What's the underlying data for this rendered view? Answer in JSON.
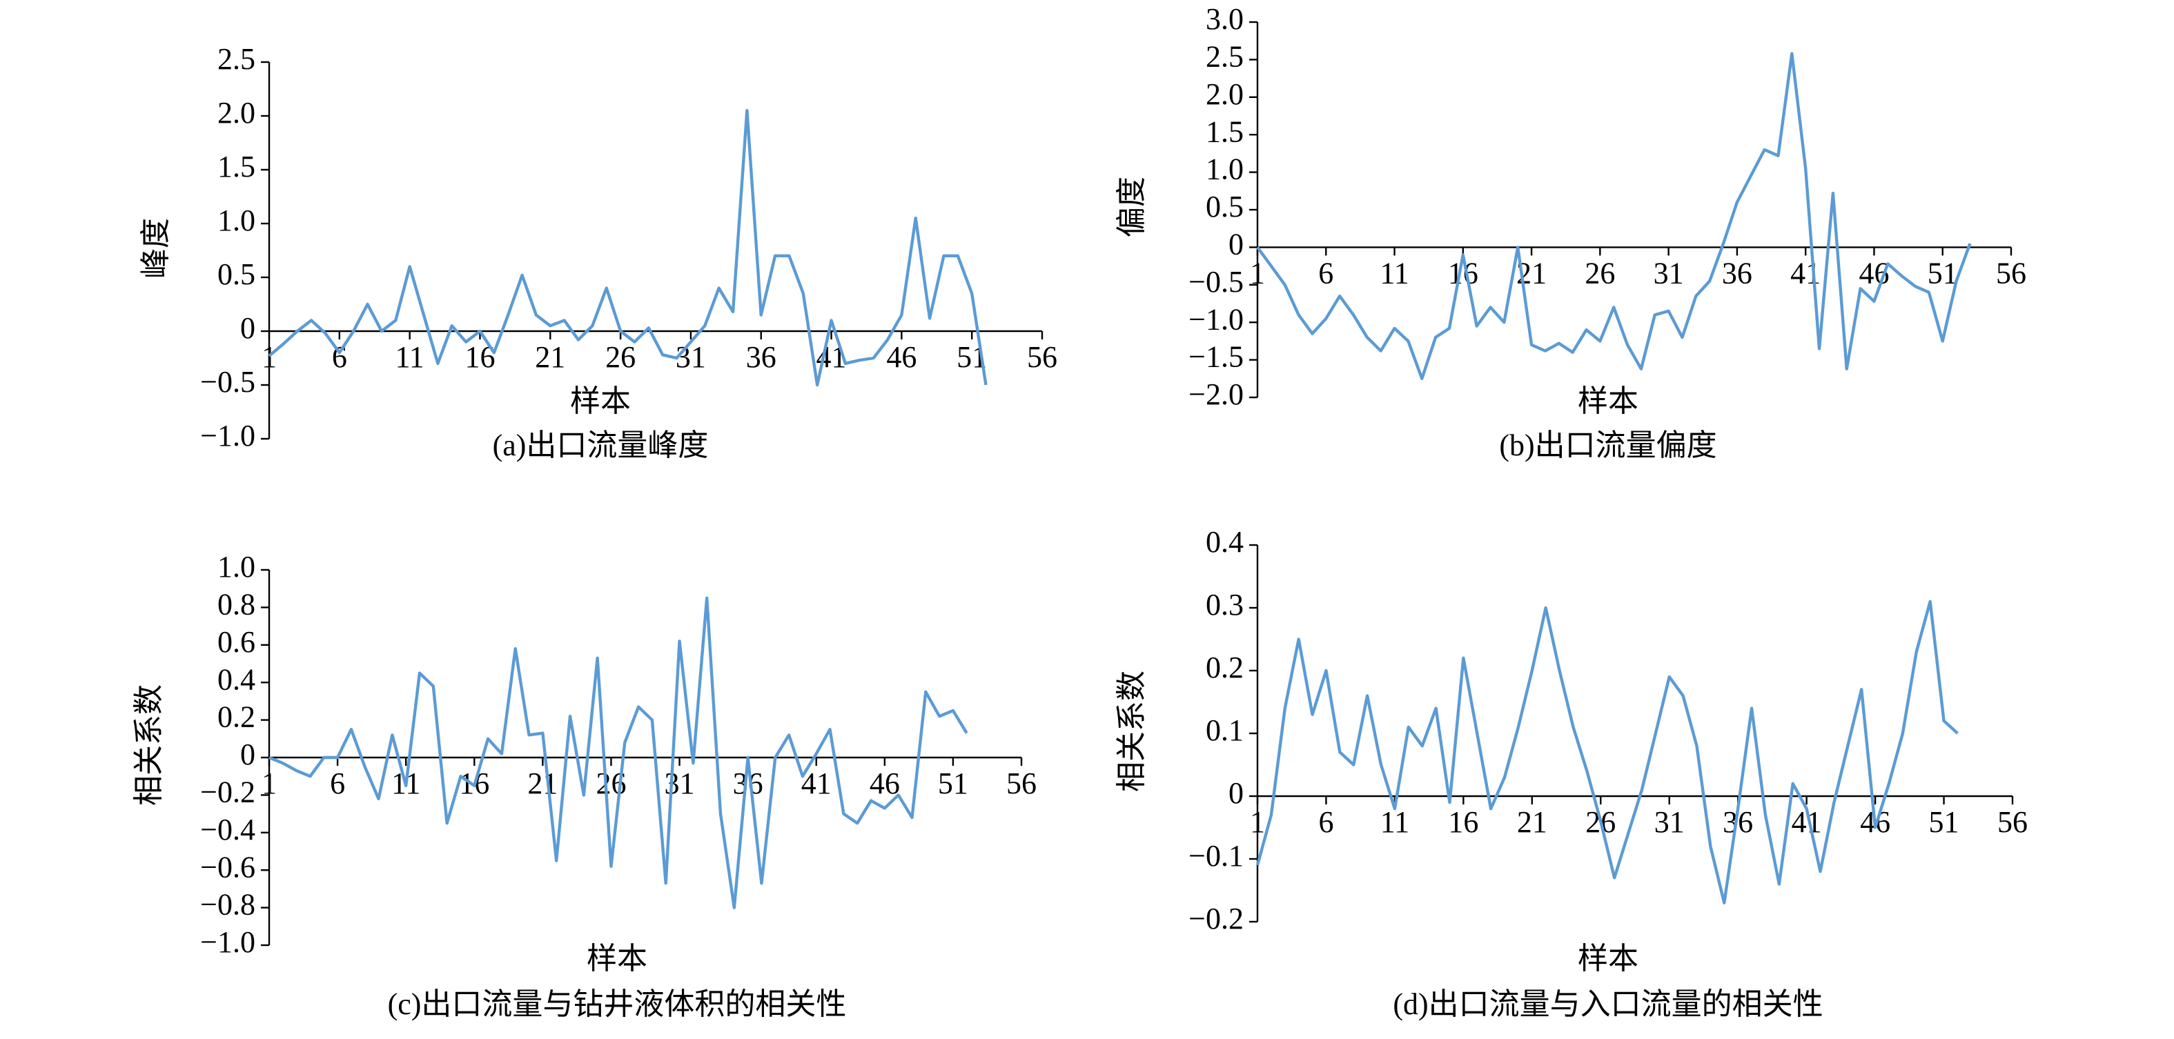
{
  "chart_data": [
    {
      "type": "line",
      "title": "(a)出口流量峰度",
      "x_label": "样本",
      "y_label": "峰度",
      "color": "#5b9bd5",
      "x": [
        1,
        2,
        3,
        4,
        5,
        6,
        7,
        8,
        9,
        10,
        11,
        12,
        13,
        14,
        15,
        16,
        17,
        18,
        19,
        20,
        21,
        22,
        23,
        24,
        25,
        26,
        27,
        28,
        29,
        30,
        31,
        32,
        33,
        34,
        35,
        36,
        37,
        38,
        39,
        40,
        41,
        42,
        43,
        44,
        45,
        46,
        47,
        48,
        49,
        50,
        51,
        52
      ],
      "values": [
        -0.23,
        -0.12,
        0,
        0.1,
        -0.02,
        -0.2,
        0,
        0.25,
        0,
        0.1,
        0.6,
        0.15,
        -0.3,
        0.05,
        -0.1,
        0,
        -0.2,
        0.15,
        0.52,
        0.15,
        0.05,
        0.1,
        -0.08,
        0.05,
        0.4,
        0,
        -0.1,
        0.03,
        -0.22,
        -0.25,
        -0.1,
        0.05,
        0.4,
        0.18,
        2.05,
        0.15,
        0.7,
        0.7,
        0.35,
        -0.5,
        0.1,
        -0.3,
        -0.27,
        -0.25,
        -0.08,
        0.15,
        1.05,
        0.12,
        0.7,
        0.7,
        0.35,
        -0.5
      ],
      "xlim": [
        1,
        56
      ],
      "xticks": [
        1,
        6,
        11,
        16,
        21,
        26,
        31,
        36,
        41,
        46,
        51,
        56
      ],
      "ylim": [
        -1,
        2.5
      ],
      "yticks": [
        2.5,
        {
          "value": 2,
          "label": "2.0"
        },
        1.5,
        {
          "value": 1,
          "label": "1.0"
        },
        0.5,
        0,
        {
          "value": -0.5,
          "label": "−0.5"
        },
        {
          "value": -1,
          "label": "−1.0"
        }
      ]
    },
    {
      "type": "line",
      "title": "(b)出口流量偏度",
      "x_label": "样本",
      "y_label": "偏度",
      "color": "#5b9bd5",
      "x": [
        1,
        2,
        3,
        4,
        5,
        6,
        7,
        8,
        9,
        10,
        11,
        12,
        13,
        14,
        15,
        16,
        17,
        18,
        19,
        20,
        21,
        22,
        23,
        24,
        25,
        26,
        27,
        28,
        29,
        30,
        31,
        32,
        33,
        34,
        35,
        36,
        37,
        38,
        39,
        40,
        41,
        42,
        43,
        44,
        45,
        46,
        47,
        48,
        49,
        50,
        51,
        52,
        53
      ],
      "values": [
        0,
        -0.25,
        -0.5,
        -0.9,
        -1.15,
        -0.95,
        -0.65,
        -0.9,
        -1.2,
        -1.38,
        -1.08,
        -1.25,
        -1.75,
        -1.2,
        -1.08,
        -0.1,
        -1.05,
        -0.8,
        -1.0,
        0,
        -1.3,
        -1.38,
        -1.28,
        -1.4,
        -1.1,
        -1.25,
        -0.8,
        -1.3,
        -1.62,
        -0.9,
        -0.85,
        -1.2,
        -0.65,
        -0.45,
        0.05,
        0.6,
        0.95,
        1.3,
        1.22,
        2.58,
        1.05,
        -1.35,
        0.72,
        -1.62,
        -0.55,
        -0.72,
        -0.22,
        -0.38,
        -0.52,
        -0.6,
        -1.25,
        -0.45,
        0.05
      ],
      "xlim": [
        1,
        56
      ],
      "xticks": [
        1,
        6,
        11,
        16,
        21,
        26,
        31,
        36,
        41,
        46,
        51,
        56
      ],
      "ylim": [
        -2,
        3
      ],
      "yticks": [
        {
          "value": 3,
          "label": "3.0"
        },
        2.5,
        {
          "value": 2,
          "label": "2.0"
        },
        1.5,
        {
          "value": 1,
          "label": "1.0"
        },
        0.5,
        0,
        {
          "value": -0.5,
          "label": "−0.5"
        },
        {
          "value": -1,
          "label": "−1.0"
        },
        {
          "value": -1.5,
          "label": "−1.5"
        },
        {
          "value": -2,
          "label": "−2.0"
        }
      ]
    },
    {
      "type": "line",
      "title": "(c)出口流量与钻井液体积的相关性",
      "x_label": "样本",
      "y_label": "相关系数",
      "color": "#5b9bd5",
      "x": [
        1,
        2,
        3,
        4,
        5,
        6,
        7,
        8,
        9,
        10,
        11,
        12,
        13,
        14,
        15,
        16,
        17,
        18,
        19,
        20,
        21,
        22,
        23,
        24,
        25,
        26,
        27,
        28,
        29,
        30,
        31,
        32,
        33,
        34,
        35,
        36,
        37,
        38,
        39,
        40,
        41,
        42,
        43,
        44,
        45,
        46,
        47,
        48,
        49,
        50,
        51,
        52
      ],
      "values": [
        0,
        -0.03,
        -0.07,
        -0.1,
        0,
        0,
        0.15,
        -0.05,
        -0.22,
        0.12,
        -0.15,
        0.45,
        0.38,
        -0.35,
        -0.1,
        -0.15,
        0.1,
        0.02,
        0.58,
        0.12,
        0.13,
        -0.55,
        0.22,
        -0.2,
        0.53,
        -0.58,
        0.08,
        0.27,
        0.2,
        -0.67,
        0.62,
        -0.03,
        0.85,
        -0.3,
        -0.8,
        0,
        -0.67,
        0,
        0.12,
        -0.1,
        0.02,
        0.15,
        -0.3,
        -0.35,
        -0.23,
        -0.27,
        -0.2,
        -0.32,
        0.35,
        0.22,
        0.25,
        0.13
      ],
      "xlim": [
        1,
        56
      ],
      "xticks": [
        1,
        6,
        11,
        16,
        21,
        26,
        31,
        36,
        41,
        46,
        51,
        56
      ],
      "ylim": [
        -1,
        1
      ],
      "yticks": [
        {
          "value": 1,
          "label": "1.0"
        },
        0.8,
        0.6,
        0.4,
        0.2,
        0,
        {
          "value": -0.2,
          "label": "−0.2"
        },
        {
          "value": -0.4,
          "label": "−0.4"
        },
        {
          "value": -0.6,
          "label": "−0.6"
        },
        {
          "value": -0.8,
          "label": "−0.8"
        },
        {
          "value": -1,
          "label": "−1.0"
        }
      ]
    },
    {
      "type": "line",
      "title": "(d)出口流量与入口流量的相关性",
      "x_label": "样本",
      "y_label": "相关系数",
      "color": "#5b9bd5",
      "x": [
        1,
        2,
        3,
        4,
        5,
        6,
        7,
        8,
        9,
        10,
        11,
        12,
        13,
        14,
        15,
        16,
        17,
        18,
        19,
        20,
        21,
        22,
        23,
        24,
        25,
        26,
        27,
        28,
        29,
        30,
        31,
        32,
        33,
        34,
        35,
        36,
        37,
        38,
        39,
        40,
        41,
        42,
        43,
        44,
        45,
        46,
        47,
        48,
        49,
        50,
        51,
        52
      ],
      "values": [
        -0.11,
        -0.03,
        0.14,
        0.25,
        0.13,
        0.2,
        0.07,
        0.05,
        0.16,
        0.05,
        -0.02,
        0.11,
        0.08,
        0.14,
        -0.01,
        0.22,
        0.1,
        -0.02,
        0.03,
        0.11,
        0.2,
        0.3,
        0.2,
        0.11,
        0.04,
        -0.04,
        -0.13,
        -0.06,
        0.01,
        0.1,
        0.19,
        0.16,
        0.08,
        -0.08,
        -0.17,
        -0.02,
        0.14,
        -0.03,
        -0.14,
        0.02,
        -0.02,
        -0.12,
        -0.01,
        0.08,
        0.17,
        -0.05,
        0.02,
        0.1,
        0.23,
        0.31,
        0.12,
        0.1
      ],
      "xlim": [
        1,
        56
      ],
      "xticks": [
        1,
        6,
        11,
        16,
        21,
        26,
        31,
        36,
        41,
        46,
        51,
        56
      ],
      "ylim": [
        -0.2,
        0.4
      ],
      "yticks": [
        0.4,
        0.3,
        0.2,
        0.1,
        0,
        {
          "value": -0.1,
          "label": "−0.1"
        },
        {
          "value": -0.2,
          "label": "−0.2"
        }
      ]
    }
  ]
}
